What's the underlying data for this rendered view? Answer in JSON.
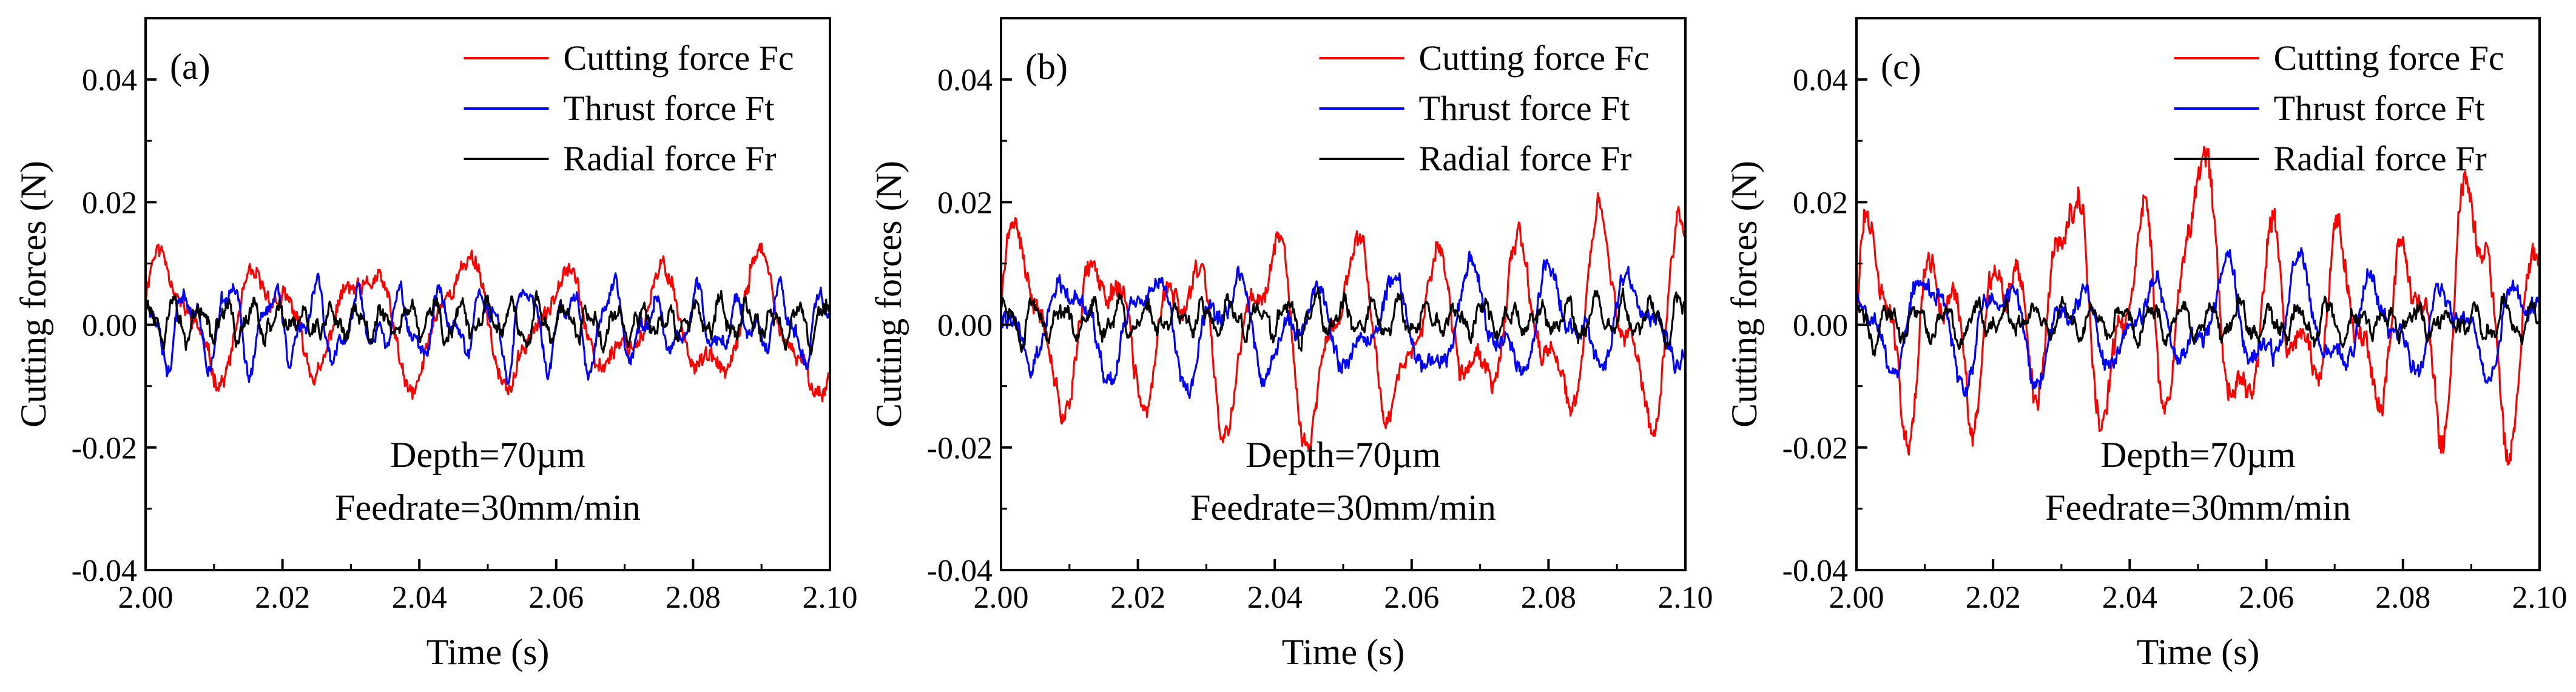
{
  "chart_data": [
    {
      "type": "line",
      "panel_label": "(a)",
      "xlabel": "Time (s)",
      "ylabel": "Cutting forces (N)",
      "xlim": [
        2.0,
        2.1
      ],
      "ylim": [
        -0.04,
        0.05
      ],
      "xticks": [
        "2.00",
        "2.02",
        "2.04",
        "2.06",
        "2.08",
        "2.10"
      ],
      "yticks": [
        "-0.04",
        "-0.02",
        "0.00",
        "0.02",
        "0.04"
      ],
      "legend_position": "top-right",
      "annotations": [
        "Depth=70µm",
        "Feedrate=30mm/min"
      ],
      "series": [
        {
          "name": "Cutting force Fc",
          "color": "#ff0000",
          "mean": 0.0,
          "amp": 0.011,
          "period": 0.0145,
          "phase": 0.3,
          "noise": 0.0012,
          "seed": 11
        },
        {
          "name": "Thrust force Ft",
          "color": "#0000ff",
          "mean": 0.0,
          "amp": 0.0065,
          "period": 0.0062,
          "phase": 1.7,
          "noise": 0.001,
          "seed": 12
        },
        {
          "name": "Radial force Fr",
          "color": "#000000",
          "mean": 0.0005,
          "amp": 0.003,
          "period": 0.0038,
          "phase": 0.9,
          "noise": 0.0011,
          "seed": 13
        }
      ]
    },
    {
      "type": "line",
      "panel_label": "(b)",
      "xlabel": "Time (s)",
      "ylabel": "Cutting forces (N)",
      "xlim": [
        2.0,
        2.1
      ],
      "ylim": [
        -0.04,
        0.05
      ],
      "xticks": [
        "2.00",
        "2.02",
        "2.04",
        "2.06",
        "2.08",
        "2.10"
      ],
      "yticks": [
        "-0.04",
        "-0.02",
        "0.00",
        "0.02",
        "0.04"
      ],
      "legend_position": "top-right",
      "annotations": [
        "Depth=70µm",
        "Feedrate=30mm/min"
      ],
      "series": [
        {
          "name": "Cutting force Fc",
          "color": "#ff0000",
          "mean": 0.0,
          "amp": 0.0155,
          "period": 0.0122,
          "phase": 0.2,
          "noise": 0.0014,
          "seed": 21
        },
        {
          "name": "Thrust force Ft",
          "color": "#0000ff",
          "mean": 0.0,
          "amp": 0.0085,
          "period": 0.0118,
          "phase": 2.6,
          "noise": 0.0012,
          "seed": 22
        },
        {
          "name": "Radial force Fr",
          "color": "#000000",
          "mean": 0.001,
          "amp": 0.003,
          "period": 0.0041,
          "phase": 0.4,
          "noise": 0.001,
          "seed": 23
        }
      ]
    },
    {
      "type": "line",
      "panel_label": "(c)",
      "xlabel": "Time (s)",
      "ylabel": "Cutting forces (N)",
      "xlim": [
        2.0,
        2.1
      ],
      "ylim": [
        -0.04,
        0.05
      ],
      "xticks": [
        "2.00",
        "2.02",
        "2.04",
        "2.06",
        "2.08",
        "2.10"
      ],
      "yticks": [
        "-0.04",
        "-0.02",
        "0.00",
        "0.02",
        "0.04"
      ],
      "legend_position": "top-right",
      "annotations": [
        "Depth=70µm",
        "Feedrate=30mm/min"
      ],
      "series": [
        {
          "name": "Cutting force Fc",
          "color": "#ff0000",
          "mean": 0.0,
          "amp": 0.017,
          "period": 0.0098,
          "phase": 0.1,
          "noise": 0.0018,
          "seed": 31,
          "peaks": [
            [
              2.049,
              0.031
            ],
            [
              2.089,
              0.021
            ],
            [
              2.03,
              0.02
            ]
          ]
        },
        {
          "name": "Thrust force Ft",
          "color": "#0000ff",
          "mean": 0.0,
          "amp": 0.0085,
          "period": 0.0109,
          "phase": 1.9,
          "noise": 0.0012,
          "seed": 32
        },
        {
          "name": "Radial force Fr",
          "color": "#000000",
          "mean": 0.0005,
          "amp": 0.0028,
          "period": 0.0043,
          "phase": 1.2,
          "noise": 0.001,
          "seed": 33
        }
      ]
    }
  ]
}
